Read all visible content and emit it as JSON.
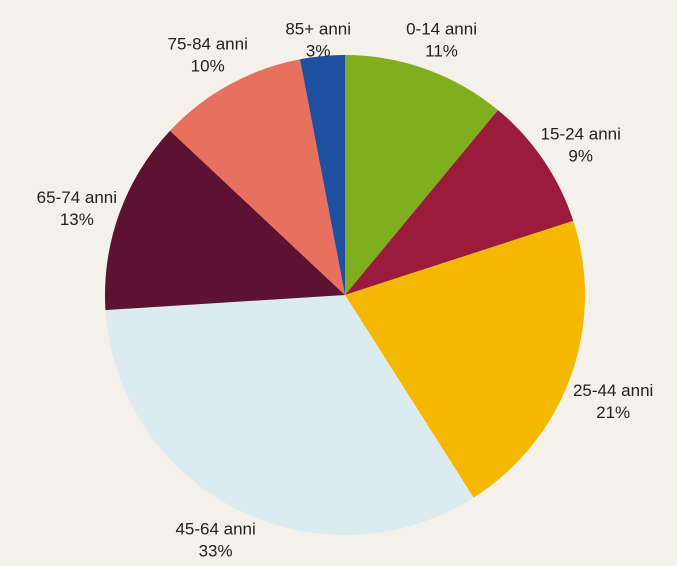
{
  "chart_data": {
    "type": "pie",
    "categories": [
      "0-14 anni",
      "15-24 anni",
      "25-44 anni",
      "45-64 anni",
      "65-74 anni",
      "75-84 anni",
      "85+ anni"
    ],
    "values": [
      11,
      9,
      21,
      33,
      13,
      10,
      3
    ],
    "value_labels": [
      "11%",
      "9%",
      "21%",
      "33%",
      "13%",
      "10%",
      "3%"
    ],
    "colors": [
      "#7fae1f",
      "#9b1b3d",
      "#f5b800",
      "#dcebf0",
      "#5e1231",
      "#e8705e",
      "#1f4fa0"
    ]
  }
}
